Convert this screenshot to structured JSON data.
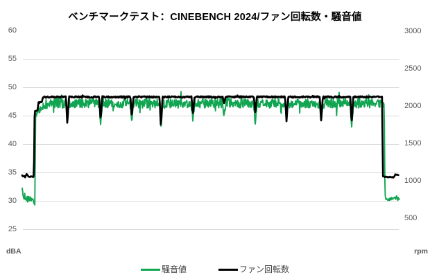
{
  "chart_data": {
    "type": "line",
    "title": "ベンチマークテスト：CINEBENCH 2024/ファン回転数・騒音値",
    "left_axis": {
      "unit": "dBA",
      "min": 25,
      "max": 60,
      "tick_step": 5,
      "ticks": [
        60,
        55,
        50,
        45,
        40,
        35,
        30,
        25
      ]
    },
    "right_axis": {
      "unit": "rpm",
      "min": 500,
      "max": 3000,
      "tick_step": 500,
      "ticks": [
        3000,
        2500,
        2000,
        1500,
        1000,
        500
      ]
    },
    "gridlines_dba": [
      55,
      50,
      45,
      40,
      35,
      30,
      25
    ],
    "grid_color": "#d9d9d9",
    "tick_color": "#595959",
    "legend": [
      {
        "label": "騒音値",
        "color": "#11a552"
      },
      {
        "label": "ファン回転数",
        "color": "#000000"
      }
    ],
    "legend_position": "bottom",
    "series": [
      {
        "key": "noise",
        "name": "騒音値",
        "axis": "left",
        "color": "#11a552",
        "stroke_width": 1.9,
        "samples": 900,
        "t_end": 1.0,
        "points": [
          [
            0.0,
            32.3,
            0.1
          ],
          [
            0.002,
            31.2,
            0.3
          ],
          [
            0.006,
            30.3,
            0.45
          ],
          [
            0.015,
            30.4,
            0.55
          ],
          [
            0.028,
            30.1,
            0.5
          ],
          [
            0.0315,
            29.5,
            0.15
          ],
          [
            0.0335,
            29.4,
            0.1
          ],
          [
            0.0355,
            44.9,
            0.25
          ],
          [
            0.04,
            45.6,
            0.45
          ],
          [
            0.05,
            46.4,
            0.6
          ],
          [
            0.065,
            47.0,
            0.8
          ],
          [
            0.09,
            47.2,
            0.85
          ],
          [
            0.1155,
            47.2,
            0.8
          ],
          [
            0.1195,
            43.8,
            0.15
          ],
          [
            0.1245,
            47.2,
            0.8
          ],
          [
            0.2037,
            47.3,
            0.8
          ],
          [
            0.2077,
            43.5,
            0.15
          ],
          [
            0.2127,
            47.3,
            0.8
          ],
          [
            0.2864,
            47.2,
            0.85
          ],
          [
            0.2904,
            44.0,
            0.15
          ],
          [
            0.2954,
            47.2,
            0.85
          ],
          [
            0.3636,
            47.3,
            0.85
          ],
          [
            0.3676,
            42.9,
            0.15
          ],
          [
            0.3726,
            47.3,
            0.85
          ],
          [
            0.4482,
            47.2,
            0.85
          ],
          [
            0.4522,
            44.2,
            0.15
          ],
          [
            0.4572,
            47.2,
            0.85
          ],
          [
            0.5309,
            47.3,
            0.85
          ],
          [
            0.5349,
            45.0,
            0.15
          ],
          [
            0.5399,
            47.3,
            0.85
          ],
          [
            0.6136,
            47.2,
            0.85
          ],
          [
            0.6176,
            43.6,
            0.15
          ],
          [
            0.6226,
            47.2,
            0.85
          ],
          [
            0.6964,
            47.3,
            0.85
          ],
          [
            0.7004,
            44.2,
            0.15
          ],
          [
            0.7054,
            47.3,
            0.85
          ],
          [
            0.7883,
            47.2,
            0.85
          ],
          [
            0.7923,
            44.0,
            0.15
          ],
          [
            0.7973,
            47.2,
            0.85
          ],
          [
            0.8692,
            47.3,
            0.85
          ],
          [
            0.8732,
            43.1,
            0.15
          ],
          [
            0.8782,
            47.3,
            0.85
          ],
          [
            0.954,
            47.2,
            0.8
          ],
          [
            0.9595,
            46.9,
            0.3
          ],
          [
            0.9615,
            31.2,
            0.2
          ],
          [
            0.965,
            30.3,
            0.3
          ],
          [
            0.98,
            30.5,
            0.35
          ],
          [
            1.0,
            30.4,
            0.3
          ]
        ]
      },
      {
        "key": "fan",
        "name": "ファン回転数",
        "axis": "right",
        "color": "#000000",
        "stroke_width": 2.7,
        "samples": 760,
        "t_end": 0.997,
        "points": [
          [
            0.0,
            1065,
            10
          ],
          [
            0.008,
            1052,
            8
          ],
          [
            0.012,
            1090,
            6
          ],
          [
            0.016,
            1058,
            8
          ],
          [
            0.028,
            1052,
            6
          ],
          [
            0.031,
            1055,
            4
          ],
          [
            0.033,
            1935,
            8
          ],
          [
            0.041,
            1940,
            8
          ],
          [
            0.043,
            2045,
            8
          ],
          [
            0.052,
            2050,
            8
          ],
          [
            0.0555,
            2118,
            10
          ],
          [
            0.09,
            2120,
            11
          ],
          [
            0.116,
            2120,
            10
          ],
          [
            0.1195,
            1760,
            4
          ],
          [
            0.124,
            2120,
            10
          ],
          [
            0.2042,
            2120,
            10
          ],
          [
            0.2077,
            1810,
            4
          ],
          [
            0.2122,
            2120,
            10
          ],
          [
            0.2869,
            2120,
            10
          ],
          [
            0.2904,
            1855,
            4
          ],
          [
            0.2949,
            2120,
            10
          ],
          [
            0.3641,
            2120,
            10
          ],
          [
            0.3676,
            1725,
            4
          ],
          [
            0.3721,
            2120,
            10
          ],
          [
            0.4487,
            2120,
            10
          ],
          [
            0.4522,
            1885,
            4
          ],
          [
            0.4567,
            2120,
            10
          ],
          [
            0.5314,
            2120,
            10
          ],
          [
            0.5349,
            2035,
            4
          ],
          [
            0.5394,
            2120,
            10
          ],
          [
            0.6141,
            2120,
            10
          ],
          [
            0.6176,
            1905,
            4
          ],
          [
            0.6221,
            2120,
            10
          ],
          [
            0.6969,
            2120,
            10
          ],
          [
            0.7004,
            1785,
            4
          ],
          [
            0.7049,
            2120,
            10
          ],
          [
            0.7888,
            2120,
            10
          ],
          [
            0.7923,
            1800,
            4
          ],
          [
            0.7968,
            2120,
            10
          ],
          [
            0.8697,
            2120,
            10
          ],
          [
            0.8732,
            1765,
            4
          ],
          [
            0.8777,
            2120,
            10
          ],
          [
            0.951,
            2120,
            10
          ],
          [
            0.9545,
            2118,
            4
          ],
          [
            0.9555,
            1060,
            4
          ],
          [
            0.96,
            1052,
            6
          ],
          [
            0.98,
            1048,
            6
          ],
          [
            0.986,
            1050,
            5
          ],
          [
            0.989,
            1088,
            5
          ],
          [
            0.993,
            1082,
            5
          ],
          [
            0.997,
            1072,
            4
          ]
        ]
      }
    ]
  }
}
